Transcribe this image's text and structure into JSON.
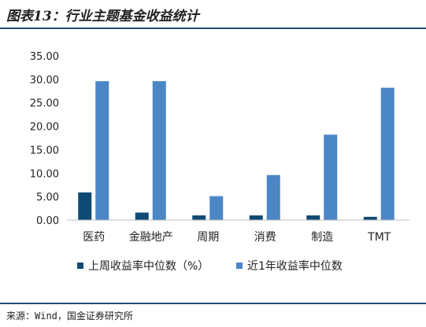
{
  "figure": {
    "title": "图表13：行业主题基金收益统计",
    "source": "来源：Wind，国金证券研究所"
  },
  "colors": {
    "series1": "#0f4a74",
    "series2": "#4b86c5",
    "rule": "#1f4e79"
  },
  "chart_data": {
    "type": "bar",
    "categories": [
      "医药",
      "金融地产",
      "周期",
      "消费",
      "制造",
      "TMT"
    ],
    "series": [
      {
        "name": "上周收益率中位数（%）",
        "values": [
          5.9,
          1.6,
          1.0,
          1.0,
          1.0,
          0.7
        ]
      },
      {
        "name": "近1年收益率中位数",
        "values": [
          29.6,
          29.6,
          5.1,
          9.6,
          18.2,
          28.2
        ]
      }
    ],
    "ylim": [
      0,
      35
    ],
    "yticks": [
      "0.00",
      "5.00",
      "10.00",
      "15.00",
      "20.00",
      "25.00",
      "30.00",
      "35.00"
    ],
    "grid": false,
    "legend": "bottom"
  }
}
